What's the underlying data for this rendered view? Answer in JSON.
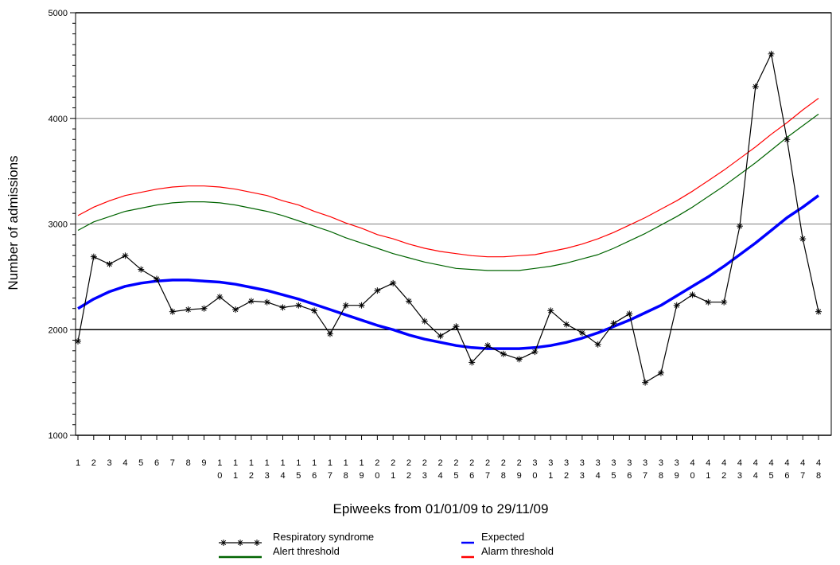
{
  "chart_data": {
    "type": "line",
    "xlabel": "Epiweeks from 01/01/09 to 29/11/09",
    "ylabel": "Number of admissions",
    "ylim": [
      1000,
      5000
    ],
    "yticks": [
      1000,
      2000,
      3000,
      4000,
      5000
    ],
    "grid": true,
    "legend_position": "bottom",
    "x": [
      1,
      2,
      3,
      4,
      5,
      6,
      7,
      8,
      9,
      10,
      11,
      12,
      13,
      14,
      15,
      16,
      17,
      18,
      19,
      20,
      21,
      22,
      23,
      24,
      25,
      26,
      27,
      28,
      29,
      30,
      31,
      32,
      33,
      34,
      35,
      36,
      37,
      38,
      39,
      40,
      41,
      42,
      43,
      44,
      45,
      46,
      47,
      48
    ],
    "x_tick_labels": [
      [
        "1",
        ""
      ],
      [
        "2",
        ""
      ],
      [
        "3",
        ""
      ],
      [
        "4",
        ""
      ],
      [
        "5",
        ""
      ],
      [
        "6",
        ""
      ],
      [
        "7",
        ""
      ],
      [
        "8",
        ""
      ],
      [
        "9",
        ""
      ],
      [
        "1",
        "0"
      ],
      [
        "1",
        "1"
      ],
      [
        "1",
        "2"
      ],
      [
        "1",
        "3"
      ],
      [
        "1",
        "4"
      ],
      [
        "1",
        "5"
      ],
      [
        "1",
        "6"
      ],
      [
        "1",
        "7"
      ],
      [
        "1",
        "8"
      ],
      [
        "1",
        "9"
      ],
      [
        "2",
        "0"
      ],
      [
        "2",
        "1"
      ],
      [
        "2",
        "2"
      ],
      [
        "2",
        "3"
      ],
      [
        "2",
        "4"
      ],
      [
        "2",
        "5"
      ],
      [
        "2",
        "6"
      ],
      [
        "2",
        "7"
      ],
      [
        "2",
        "8"
      ],
      [
        "2",
        "9"
      ],
      [
        "3",
        "0"
      ],
      [
        "3",
        "1"
      ],
      [
        "3",
        "2"
      ],
      [
        "3",
        "3"
      ],
      [
        "3",
        "4"
      ],
      [
        "3",
        "5"
      ],
      [
        "3",
        "6"
      ],
      [
        "3",
        "7"
      ],
      [
        "3",
        "8"
      ],
      [
        "3",
        "9"
      ],
      [
        "4",
        "0"
      ],
      [
        "4",
        "1"
      ],
      [
        "4",
        "2"
      ],
      [
        "4",
        "3"
      ],
      [
        "4",
        "4"
      ],
      [
        "4",
        "5"
      ],
      [
        "4",
        "6"
      ],
      [
        "4",
        "7"
      ],
      [
        "4",
        "8"
      ]
    ],
    "series": [
      {
        "name": "Respiratory syndrome",
        "color": "#000000",
        "marker": "star",
        "values": [
          1890,
          2690,
          2620,
          2700,
          2570,
          2480,
          2170,
          2190,
          2200,
          2310,
          2190,
          2270,
          2260,
          2210,
          2230,
          2180,
          1960,
          2230,
          2230,
          2370,
          2440,
          2270,
          2080,
          1940,
          2030,
          1690,
          1850,
          1770,
          1720,
          1790,
          2180,
          2050,
          1970,
          1860,
          2060,
          2150,
          1500,
          1590,
          2230,
          2330,
          2260,
          2260,
          2980,
          4300,
          4610,
          3800,
          2860,
          2170
        ]
      },
      {
        "name": "Expected",
        "color": "#0000ff",
        "values": [
          2200,
          2290,
          2360,
          2410,
          2440,
          2460,
          2470,
          2470,
          2460,
          2450,
          2430,
          2400,
          2370,
          2330,
          2290,
          2240,
          2190,
          2140,
          2090,
          2040,
          2000,
          1950,
          1910,
          1880,
          1850,
          1830,
          1820,
          1820,
          1820,
          1830,
          1850,
          1880,
          1920,
          1970,
          2030,
          2090,
          2160,
          2230,
          2320,
          2410,
          2500,
          2600,
          2710,
          2820,
          2940,
          3060,
          3160,
          3270
        ]
      },
      {
        "name": "Alert threshold",
        "color": "#006400",
        "values": [
          2940,
          3020,
          3070,
          3120,
          3150,
          3180,
          3200,
          3210,
          3210,
          3200,
          3180,
          3150,
          3120,
          3080,
          3030,
          2980,
          2930,
          2870,
          2820,
          2770,
          2720,
          2680,
          2640,
          2610,
          2580,
          2570,
          2560,
          2560,
          2560,
          2580,
          2600,
          2630,
          2670,
          2710,
          2770,
          2840,
          2910,
          2990,
          3070,
          3160,
          3260,
          3360,
          3470,
          3580,
          3700,
          3820,
          3930,
          4040
        ]
      },
      {
        "name": "Alarm threshold",
        "color": "#ff0000",
        "values": [
          3080,
          3160,
          3220,
          3270,
          3300,
          3330,
          3350,
          3360,
          3360,
          3350,
          3330,
          3300,
          3270,
          3220,
          3180,
          3120,
          3070,
          3010,
          2960,
          2900,
          2860,
          2810,
          2770,
          2740,
          2720,
          2700,
          2690,
          2690,
          2700,
          2710,
          2740,
          2770,
          2810,
          2860,
          2920,
          2990,
          3060,
          3140,
          3220,
          3310,
          3410,
          3510,
          3620,
          3730,
          3850,
          3960,
          4080,
          4190
        ]
      }
    ]
  }
}
